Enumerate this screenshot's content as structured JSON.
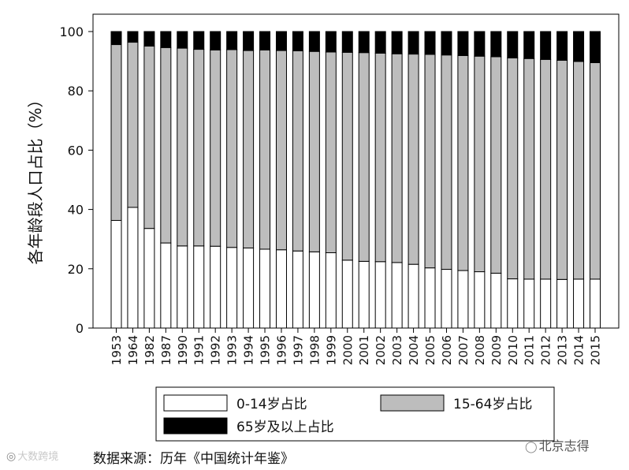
{
  "chart_data": {
    "type": "bar",
    "stacked": true,
    "categories": [
      "1953",
      "1964",
      "1982",
      "1987",
      "1990",
      "1991",
      "1992",
      "1993",
      "1994",
      "1995",
      "1996",
      "1997",
      "1998",
      "1999",
      "2000",
      "2001",
      "2002",
      "2003",
      "2004",
      "2005",
      "2006",
      "2007",
      "2008",
      "2009",
      "2010",
      "2011",
      "2012",
      "2013",
      "2014",
      "2015"
    ],
    "series": [
      {
        "name": "0-14岁占比",
        "color": "#ffffff",
        "values": [
          36.3,
          40.7,
          33.6,
          28.7,
          27.7,
          27.7,
          27.6,
          27.2,
          27.0,
          26.6,
          26.4,
          26.0,
          25.7,
          25.4,
          22.9,
          22.5,
          22.4,
          22.1,
          21.5,
          20.3,
          19.8,
          19.4,
          19.0,
          18.5,
          16.6,
          16.5,
          16.5,
          16.4,
          16.5,
          16.5
        ]
      },
      {
        "name": "15-64岁占比",
        "color": "#bdbdbd",
        "values": [
          59.3,
          55.7,
          61.5,
          65.9,
          66.7,
          66.3,
          66.2,
          66.7,
          66.6,
          67.2,
          67.2,
          67.5,
          67.6,
          67.7,
          70.1,
          70.4,
          70.3,
          70.4,
          70.9,
          72.0,
          72.3,
          72.5,
          72.7,
          73.0,
          74.5,
          74.4,
          74.1,
          73.9,
          73.4,
          73.0
        ]
      },
      {
        "name": "65岁及以上占比",
        "color": "#000000",
        "values": [
          4.4,
          3.6,
          4.9,
          5.4,
          5.6,
          6.0,
          6.2,
          6.1,
          6.4,
          6.2,
          6.4,
          6.5,
          6.7,
          6.9,
          7.0,
          7.1,
          7.3,
          7.5,
          7.6,
          7.7,
          7.9,
          8.1,
          8.3,
          8.5,
          8.9,
          9.1,
          9.4,
          9.7,
          10.1,
          10.5
        ]
      }
    ],
    "ylabel": "各年龄段人口占比（%）",
    "ylim": [
      0,
      100
    ],
    "yticks": [
      0,
      20,
      40,
      60,
      80,
      100
    ],
    "grid": false,
    "legend": "bottom"
  },
  "source_text": "数据来源：历年《中国统计年鉴》",
  "watermark_left": "大数跨境",
  "watermark_right": "北京志得",
  "icons": {
    "watermark_left_icon": "camera-icon",
    "watermark_right_icon": "wechat-icon"
  }
}
